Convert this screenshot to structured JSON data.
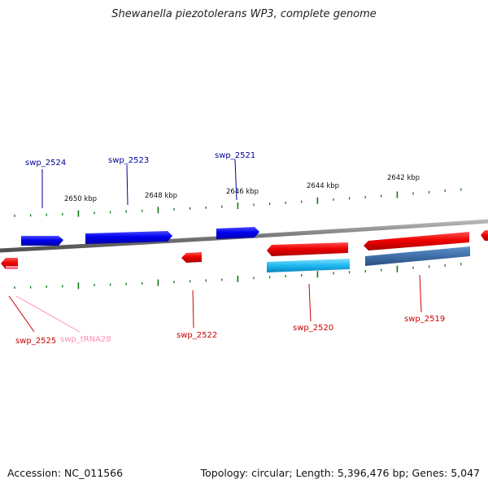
{
  "title": "Shewanella piezotolerans WP3, complete genome",
  "footer": {
    "accession": "Accession: NC_011566",
    "summary": "Topology: circular; Length: 5,396,476 bp; Genes: 5,047"
  },
  "colors": {
    "forward_gene": "#0000ee",
    "reverse_gene": "#ee0000",
    "forward_label": "#000099",
    "reverse_label": "#cc0000",
    "trna": "#ff6b8a",
    "trna_label": "#ff8fb0",
    "rna_cyan": "#1fb8f0",
    "rna_steel": "#3f6fa8",
    "backbone": "#808080",
    "tick": "#117711"
  },
  "ruler_labels": [
    "2650 kbp",
    "2648 kbp",
    "2646 kbp",
    "2644 kbp",
    "2642 kbp"
  ],
  "forward_genes": [
    "swp_2524",
    "swp_2523",
    "swp_2521"
  ],
  "reverse_genes": [
    "swp_2525",
    "swp_tRNA28",
    "swp_2522",
    "swp_2520",
    "swp_2519"
  ]
}
